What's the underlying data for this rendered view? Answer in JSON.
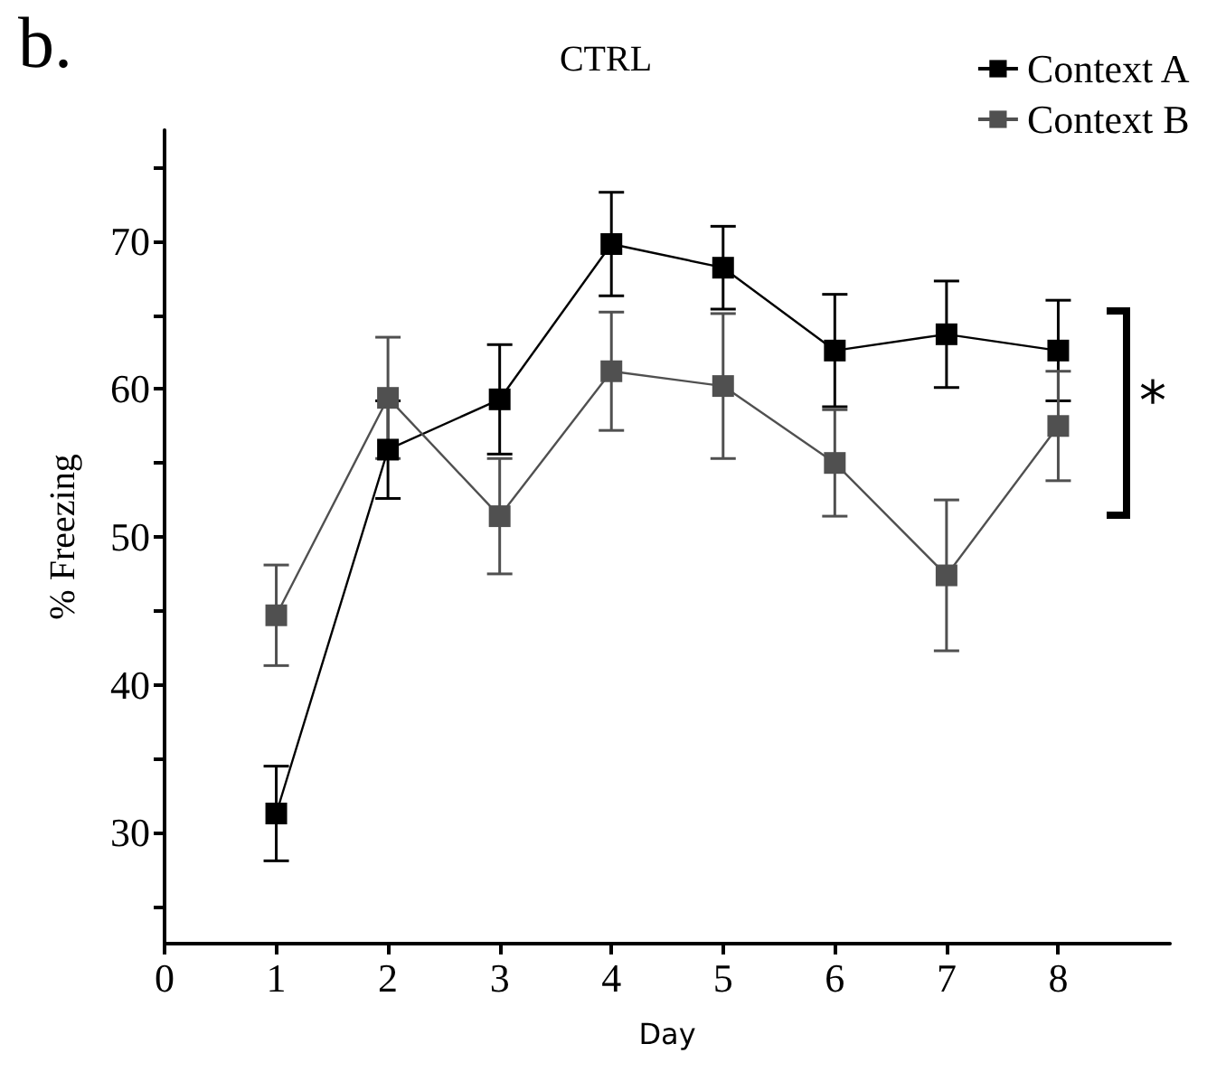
{
  "chart_data": {
    "type": "line",
    "title": "CTRL",
    "xlabel": "Day",
    "ylabel": "% Freezing",
    "annotations": [
      "b.",
      "*"
    ],
    "x": [
      1,
      2,
      3,
      4,
      5,
      6,
      7,
      8
    ],
    "series": [
      {
        "name": "Context A",
        "color": "#000000",
        "values": [
          31.3,
          55.9,
          59.3,
          69.8,
          68.2,
          62.6,
          63.7,
          62.6
        ],
        "errors": [
          3.2,
          3.3,
          3.7,
          3.5,
          2.8,
          3.8,
          3.6,
          3.4
        ]
      },
      {
        "name": "Context B",
        "color": "#505050",
        "values": [
          44.7,
          59.4,
          51.4,
          61.2,
          60.2,
          55.0,
          47.4,
          57.5
        ],
        "errors": [
          3.4,
          4.1,
          3.9,
          4.0,
          4.9,
          3.6,
          5.1,
          3.7
        ]
      }
    ],
    "xlim": [
      0,
      9
    ],
    "xticks": [
      0,
      1,
      2,
      3,
      4,
      5,
      6,
      7,
      8
    ],
    "ylim": [
      22.5,
      77.5
    ],
    "yticks": [
      {
        "value": 25,
        "label": null
      },
      30,
      {
        "value": 35,
        "label": null
      },
      40,
      {
        "value": 45,
        "label": null
      },
      50,
      {
        "value": 55,
        "label": null
      },
      60,
      {
        "value": 65,
        "label": null
      },
      70,
      {
        "value": 75,
        "label": null
      }
    ],
    "grid": false,
    "legend": "top right",
    "marker": "square",
    "line_style": "solid"
  }
}
